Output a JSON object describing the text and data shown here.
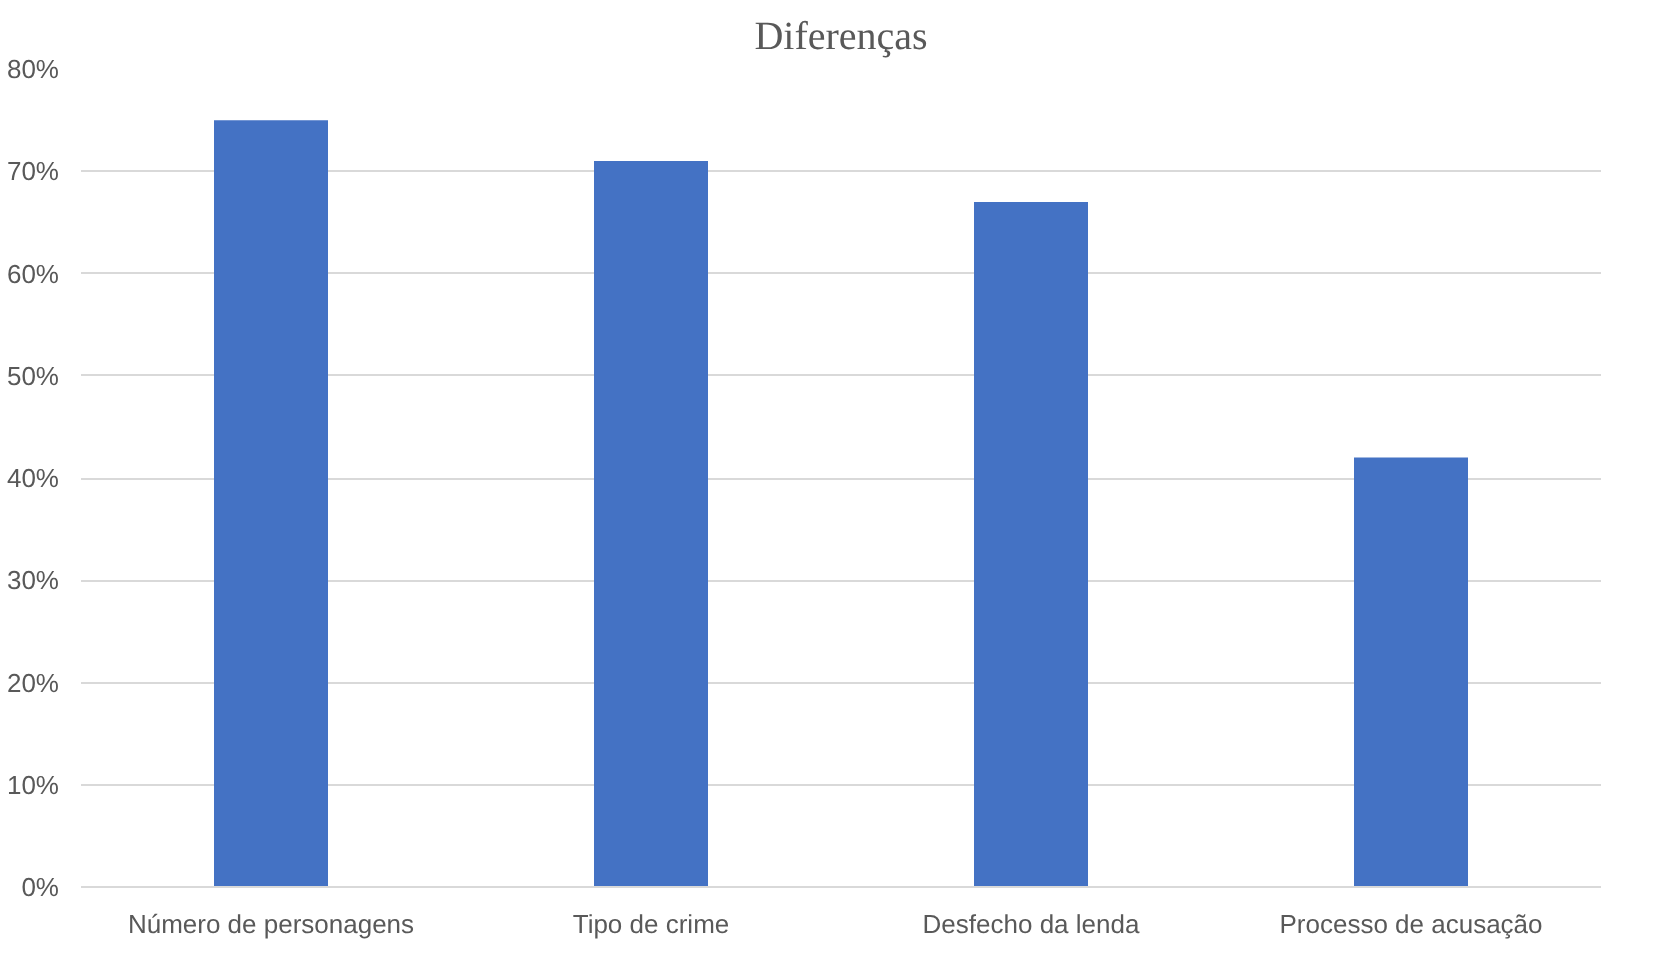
{
  "chart_data": {
    "type": "bar",
    "title": "Diferenças",
    "categories": [
      "Número de personagens",
      "Tipo de crime",
      "Desfecho da lenda",
      "Processo de acusação"
    ],
    "values": [
      75,
      71,
      67,
      42
    ],
    "color": "#4472c4",
    "ylim": [
      0,
      80
    ],
    "yticks": [
      {
        "value": 0,
        "label": "0%"
      },
      {
        "value": 10,
        "label": "10%"
      },
      {
        "value": 20,
        "label": "20%"
      },
      {
        "value": 30,
        "label": "30%"
      },
      {
        "value": 40,
        "label": "40%"
      },
      {
        "value": 50,
        "label": "50%"
      },
      {
        "value": 60,
        "label": "60%"
      },
      {
        "value": 70,
        "label": "70%"
      },
      {
        "value": 80,
        "label": "80%"
      }
    ],
    "grid": "y"
  }
}
